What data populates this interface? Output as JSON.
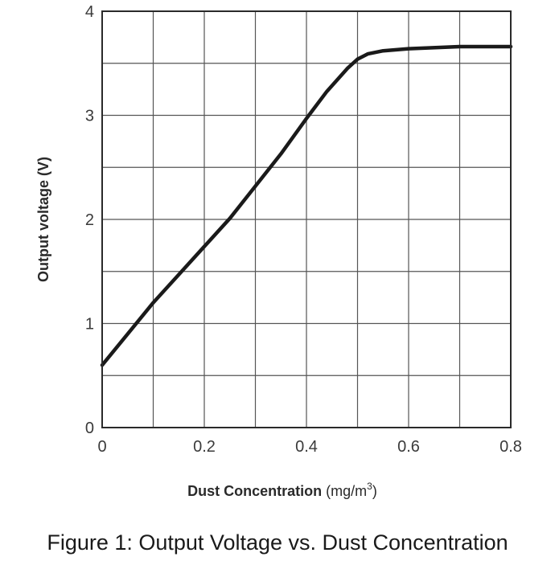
{
  "caption": "Figure 1: Output Voltage vs. Dust Concentration",
  "chart_data": {
    "type": "line",
    "title": "",
    "xlabel": {
      "part1": "Dust",
      "part2": "Concentration",
      "unit_prefix": "(mg/m",
      "unit_superscript": "3",
      "unit_suffix": ")"
    },
    "ylabel": "Output voltage (V)",
    "xlim": [
      0,
      0.8
    ],
    "ylim": [
      0,
      4
    ],
    "x_ticks": [
      0,
      0.1,
      0.2,
      0.3,
      0.4,
      0.5,
      0.6,
      0.7,
      0.8
    ],
    "y_ticks": [
      0,
      0.5,
      1,
      1.5,
      2,
      2.5,
      3,
      3.5,
      4
    ],
    "x_tick_labels": [
      {
        "value": 0,
        "label": "0"
      },
      {
        "value": 0.2,
        "label": "0.2"
      },
      {
        "value": 0.4,
        "label": "0.4"
      },
      {
        "value": 0.6,
        "label": "0.6"
      },
      {
        "value": 0.8,
        "label": "0.8"
      }
    ],
    "y_tick_labels": [
      {
        "value": 0,
        "label": "0"
      },
      {
        "value": 1,
        "label": "1"
      },
      {
        "value": 2,
        "label": "2"
      },
      {
        "value": 3,
        "label": "3"
      },
      {
        "value": 4,
        "label": "4"
      }
    ],
    "grid": true,
    "line_color": "#1a1a1a",
    "series": [
      {
        "x": [
          0,
          0.05,
          0.1,
          0.15,
          0.2,
          0.25,
          0.3,
          0.35,
          0.4,
          0.44,
          0.48,
          0.5,
          0.52,
          0.55,
          0.6,
          0.7,
          0.8
        ],
        "y": [
          0.6,
          0.9,
          1.2,
          1.47,
          1.74,
          2.01,
          2.32,
          2.63,
          2.97,
          3.23,
          3.45,
          3.54,
          3.59,
          3.62,
          3.64,
          3.66,
          3.66
        ]
      }
    ]
  }
}
